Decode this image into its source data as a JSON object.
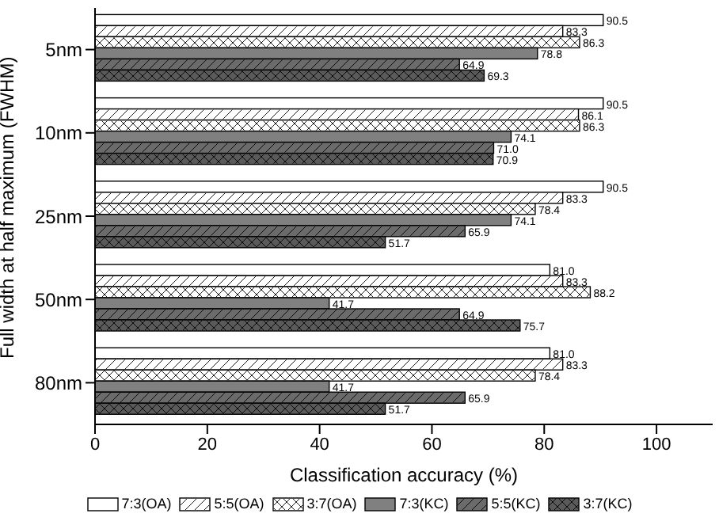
{
  "chart_data": {
    "type": "bar",
    "orientation": "horizontal",
    "xlabel": "Classification accuracy (%)",
    "ylabel": "Full width at half maximum (FWHM)",
    "categories": [
      "5nm",
      "10nm",
      "25nm",
      "50nm",
      "80nm"
    ],
    "series": [
      {
        "name": "7:3(OA)",
        "color": "#ffffff",
        "values": [
          90.5,
          90.5,
          90.5,
          81.0,
          81.0
        ],
        "value_labels": [
          "90.5",
          "90.5",
          "90.5",
          "81.0",
          "81.0"
        ]
      },
      {
        "name": "5:5(OA)",
        "color": "#ffffff",
        "values": [
          83.3,
          86.1,
          83.3,
          83.3,
          83.3
        ],
        "value_labels": [
          "83.3",
          "86.1",
          "83.3",
          "83.3",
          "83.3"
        ]
      },
      {
        "name": "3:7(OA)",
        "color": "#ffffff",
        "values": [
          86.3,
          86.3,
          78.4,
          88.2,
          78.4
        ],
        "value_labels": [
          "86.3",
          "86.3",
          "78.4",
          "88.2",
          "78.4"
        ]
      },
      {
        "name": "7:3(KC)",
        "color": "#808080",
        "values": [
          78.8,
          74.1,
          74.1,
          41.7,
          41.7
        ],
        "value_labels": [
          "78.8",
          "74.1",
          "74.1",
          "41.7",
          "41.7"
        ]
      },
      {
        "name": "5:5(KC)",
        "color": "#6b6b6b",
        "values": [
          64.9,
          71.0,
          65.9,
          64.9,
          65.9
        ],
        "value_labels": [
          "64.9",
          "71.0",
          "65.9",
          "64.9",
          "65.9"
        ]
      },
      {
        "name": "3:7(KC)",
        "color": "#5a5a5a",
        "values": [
          69.3,
          70.9,
          51.7,
          75.7,
          51.7
        ],
        "value_labels": [
          "69.3",
          "70.9",
          "51.7",
          "75.7",
          "51.7"
        ]
      }
    ],
    "xlim": [
      0,
      110
    ],
    "xticks": [
      0,
      20,
      40,
      60,
      80,
      100
    ],
    "grid": false,
    "legend": "bottom"
  }
}
